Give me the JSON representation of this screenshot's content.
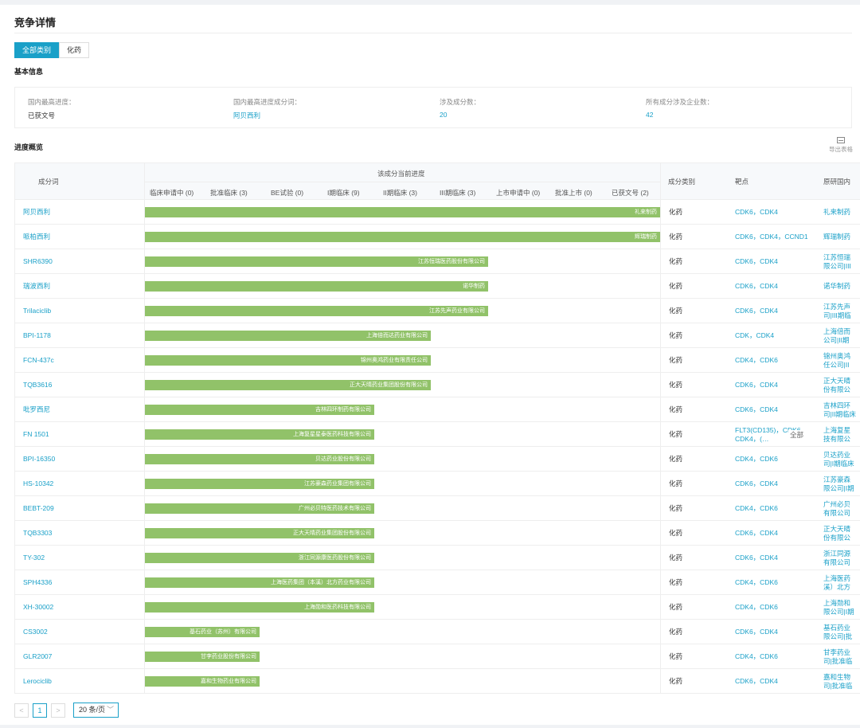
{
  "page_title": "竞争详情",
  "category_tabs": [
    "全部类别",
    "化药"
  ],
  "basic_info": {
    "label": "基本信息",
    "items": [
      {
        "label": "国内最高进度：",
        "value": "已获文号"
      },
      {
        "label": "国内最高进度成分词：",
        "value": "阿贝西利"
      },
      {
        "label": "涉及成分数：",
        "value": "20"
      },
      {
        "label": "所有成分涉及企业数：",
        "value": "42"
      }
    ]
  },
  "progress": {
    "label": "进度概览",
    "export_label": "导出表格",
    "headers": {
      "name": "成分词",
      "current_progress": "该成分当前进度",
      "type": "成分类别",
      "target": "靶点",
      "org": "原研国内"
    },
    "stages": [
      "临床申请中 (0)",
      "批准临床 (3)",
      "BE试验 (0)",
      "I期临床 (9)",
      "II期临床 (3)",
      "III期临床 (3)",
      "上市申请中 (0)",
      "批准上市 (0)",
      "已获文号 (2)"
    ],
    "more_label": "全部",
    "rows": [
      {
        "name": "阿贝西利",
        "stage": 9,
        "company": "礼来制药",
        "type": "化药",
        "target": "CDK6，CDK4",
        "org": "礼来制药"
      },
      {
        "name": "哌柏西利",
        "stage": 9,
        "company": "辉瑞制药",
        "type": "化药",
        "target": "CDK6，CDK4，CCND1",
        "org": "辉瑞制药"
      },
      {
        "name": "SHR6390",
        "stage": 6,
        "company": "江苏恒瑞医药股份有限公司",
        "type": "化药",
        "target": "CDK6，CDK4",
        "org": "江苏恒瑞\n限公司|III"
      },
      {
        "name": "瑞波西利",
        "stage": 6,
        "company": "诺华制药",
        "type": "化药",
        "target": "CDK6，CDK4",
        "org": "诺华制药"
      },
      {
        "name": "Trilaciclib",
        "stage": 6,
        "company": "江苏先声药业有限公司",
        "type": "化药",
        "target": "CDK6，CDK4",
        "org": "江苏先声\n司|III期临"
      },
      {
        "name": "BPI-1178",
        "stage": 5,
        "company": "上海倍而达药业有限公司",
        "type": "化药",
        "target": "CDK，CDK4",
        "org": "上海倍而\n公司|II期"
      },
      {
        "name": "FCN-437c",
        "stage": 5,
        "company": "锦州奥鸿药业有限责任公司",
        "type": "化药",
        "target": "CDK4，CDK6",
        "org": "锦州奥鸿\n任公司|II"
      },
      {
        "name": "TQB3616",
        "stage": 5,
        "company": "正大天晴药业集团股份有限公司",
        "type": "化药",
        "target": "CDK6，CDK4",
        "org": "正大天晴\n份有限公"
      },
      {
        "name": "吡罗西尼",
        "stage": 4,
        "company": "吉林四环制药有限公司",
        "type": "化药",
        "target": "CDK6，CDK4",
        "org": "吉林四环\n司|II期临床"
      },
      {
        "name": "FN 1501",
        "stage": 4,
        "company": "上海复星星泰医药科技有限公司",
        "type": "化药",
        "target": "FLT3(CD135)，CDK6，CDK4，(…",
        "org": "上海复星\n技有限公",
        "has_more": true
      },
      {
        "name": "BPI-16350",
        "stage": 4,
        "company": "贝达药业股份有限公司",
        "type": "化药",
        "target": "CDK4，CDK6",
        "org": "贝达药业\n司|I期临床"
      },
      {
        "name": "HS-10342",
        "stage": 4,
        "company": "江苏豪森药业集团有限公司",
        "type": "化药",
        "target": "CDK6，CDK4",
        "org": "江苏豪森\n限公司|I期"
      },
      {
        "name": "BEBT-209",
        "stage": 4,
        "company": "广州必贝特医药技术有限公司",
        "type": "化药",
        "target": "CDK4，CDK6",
        "org": "广州必贝\n有限公司"
      },
      {
        "name": "TQB3303",
        "stage": 4,
        "company": "正大天晴药业集团股份有限公司",
        "type": "化药",
        "target": "CDK6，CDK4",
        "org": "正大天晴\n份有限公"
      },
      {
        "name": "TY-302",
        "stage": 4,
        "company": "浙江同源康医药股份有限公司",
        "type": "化药",
        "target": "CDK6，CDK4",
        "org": "浙江同源\n有限公司"
      },
      {
        "name": "SPH4336",
        "stage": 4,
        "company": "上海医药集团（本溪）北方药业有限公司",
        "type": "化药",
        "target": "CDK4，CDK6",
        "org": "上海医药\n溪）北方"
      },
      {
        "name": "XH-30002",
        "stage": 4,
        "company": "上海勋和医药科技有限公司",
        "type": "化药",
        "target": "CDK4，CDK6",
        "org": "上海勋和\n限公司|I期"
      },
      {
        "name": "CS3002",
        "stage": 2,
        "company": "基石药业（苏州）有限公司",
        "type": "化药",
        "target": "CDK6，CDK4",
        "org": "基石药业\n限公司|批"
      },
      {
        "name": "GLR2007",
        "stage": 2,
        "company": "甘李药业股份有限公司",
        "type": "化药",
        "target": "CDK4，CDK6",
        "org": "甘李药业\n司|批准临"
      },
      {
        "name": "Lerociclib",
        "stage": 2,
        "company": "嘉和生物药业有限公司",
        "type": "化药",
        "target": "CDK6，CDK4",
        "org": "嘉和生物\n司|批准临"
      }
    ]
  },
  "pagination": {
    "prev": "<",
    "current": "1",
    "next": ">",
    "page_size": "20 条/页"
  }
}
